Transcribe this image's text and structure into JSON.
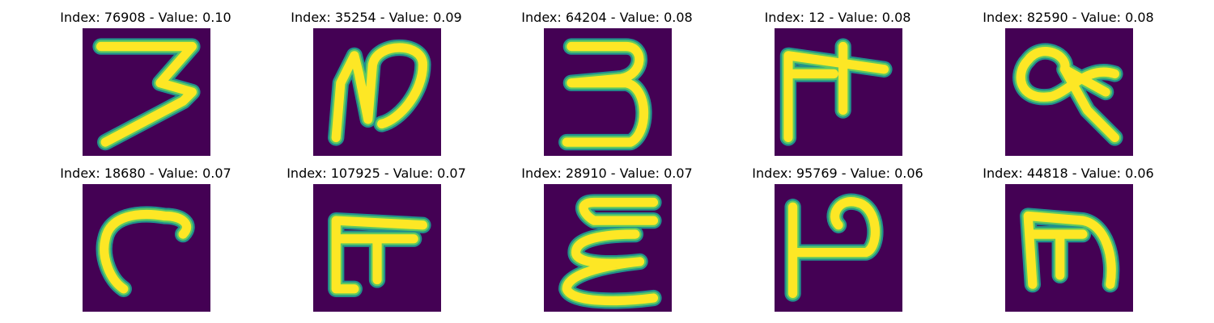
{
  "colors": {
    "background": "#440154",
    "stroke_outer": "#21908c",
    "stroke_mid": "#5ec962",
    "stroke_inner": "#fde725"
  },
  "grid": [
    {
      "title": "Index: 76908 - Value: 0.10",
      "index": 76908,
      "value": 0.1
    },
    {
      "title": "Index: 35254 - Value: 0.09",
      "index": 35254,
      "value": 0.09
    },
    {
      "title": "Index: 64204 - Value: 0.08",
      "index": 64204,
      "value": 0.08
    },
    {
      "title": "Index: 12 - Value: 0.08",
      "index": 12,
      "value": 0.08
    },
    {
      "title": "Index: 82590 - Value: 0.08",
      "index": 82590,
      "value": 0.08
    },
    {
      "title": "Index: 18680 - Value: 0.07",
      "index": 18680,
      "value": 0.07
    },
    {
      "title": "Index: 107925 - Value: 0.07",
      "index": 107925,
      "value": 0.07
    },
    {
      "title": "Index: 28910 - Value: 0.07",
      "index": 28910,
      "value": 0.07
    },
    {
      "title": "Index: 95769 - Value: 0.06",
      "index": 95769,
      "value": 0.06
    },
    {
      "title": "Index: 44818 - Value: 0.06",
      "index": 44818,
      "value": 0.06
    }
  ]
}
